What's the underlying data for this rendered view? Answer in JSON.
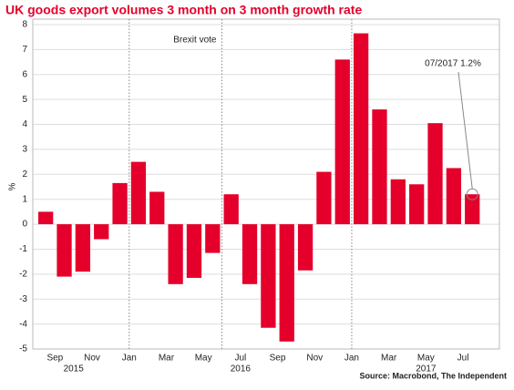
{
  "chart_data": {
    "type": "bar",
    "title": "UK goods export volumes 3 month on 3 month growth rate",
    "ylabel": "%",
    "source": "Source: Macrobond, The Independent",
    "annotations": [
      {
        "text": "Brexit vote"
      },
      {
        "text": "07/2017  1.2%"
      }
    ],
    "categories": [
      null,
      "Sep",
      null,
      "Nov",
      null,
      "Jan",
      null,
      "Mar",
      null,
      "May",
      null,
      "Jul",
      null,
      "Sep",
      null,
      "Nov",
      null,
      "Jan",
      null,
      "Mar",
      null,
      "May",
      null,
      "Jul"
    ],
    "year_labels": [
      {
        "category": 2,
        "label": "2015"
      },
      {
        "category": 11,
        "label": "2016"
      },
      {
        "category": 21,
        "label": "2017"
      }
    ],
    "values": [
      0.5,
      -2.1,
      -1.9,
      -0.6,
      1.65,
      2.5,
      1.3,
      -2.4,
      -2.15,
      -1.15,
      1.2,
      -2.4,
      -4.15,
      -4.7,
      -1.85,
      2.1,
      6.6,
      7.65,
      4.6,
      1.8,
      1.6,
      4.05,
      2.25,
      1.2
    ],
    "color": "#e4002b",
    "ylim": [
      -5,
      8
    ],
    "yticks": [
      -5,
      -4,
      -3,
      -2,
      -1,
      0,
      1,
      2,
      3,
      4,
      5,
      6,
      7,
      8
    ],
    "grid": true
  }
}
